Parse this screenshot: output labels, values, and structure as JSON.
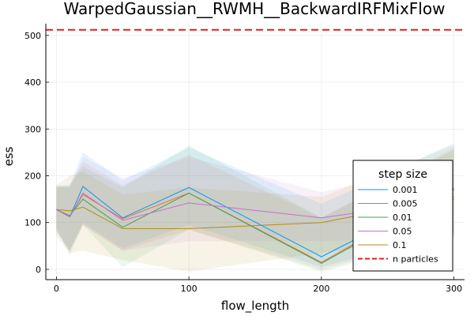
{
  "chart_data": {
    "type": "line",
    "title": "WarpedGaussian__RWMH__BackwardIRFMixFlow",
    "xlabel": "flow_length",
    "ylabel": "ess",
    "xlim": [
      -8,
      308
    ],
    "ylim": [
      -22,
      525
    ],
    "xticks": [
      0,
      100,
      200,
      300
    ],
    "yticks": [
      0,
      100,
      200,
      300,
      400,
      500
    ],
    "grid": true,
    "legend": {
      "title": "step size",
      "placement": "bottom-right"
    },
    "x": [
      0,
      10,
      20,
      50,
      100,
      200,
      300
    ],
    "series": [
      {
        "name": "0.001",
        "color": "#009AFA",
        "values": [
          128,
          112,
          177,
          110,
          175,
          27,
          172
        ],
        "lower": [
          80,
          40,
          100,
          45,
          95,
          5,
          80
        ],
        "upper": [
          180,
          180,
          250,
          190,
          260,
          140,
          270
        ]
      },
      {
        "name": "0.005",
        "color": "#E36F47",
        "values": [
          128,
          112,
          160,
          108,
          163,
          15,
          175
        ],
        "lower": [
          85,
          40,
          95,
          40,
          85,
          0,
          75
        ],
        "upper": [
          178,
          175,
          230,
          180,
          245,
          110,
          260
        ]
      },
      {
        "name": "0.01",
        "color": "#3EA44E",
        "values": [
          128,
          115,
          150,
          90,
          163,
          13,
          170
        ],
        "lower": [
          90,
          30,
          95,
          5,
          85,
          -5,
          70
        ],
        "upper": [
          175,
          180,
          220,
          175,
          265,
          110,
          255
        ]
      },
      {
        "name": "0.05",
        "color": "#C271D2",
        "values": [
          128,
          112,
          163,
          105,
          142,
          110,
          150
        ],
        "lower": [
          80,
          40,
          95,
          40,
          60,
          60,
          70
        ],
        "upper": [
          175,
          175,
          240,
          195,
          240,
          165,
          230
        ]
      },
      {
        "name": "0.1",
        "color": "#AC8E18",
        "values": [
          128,
          125,
          133,
          87,
          87,
          100,
          155
        ],
        "lower": [
          70,
          35,
          40,
          20,
          -5,
          35,
          70
        ],
        "upper": [
          180,
          200,
          210,
          160,
          175,
          155,
          265
        ]
      }
    ],
    "hline": {
      "name": "n particles",
      "y": 512,
      "color": "#E0201B",
      "style": "dashed"
    }
  }
}
